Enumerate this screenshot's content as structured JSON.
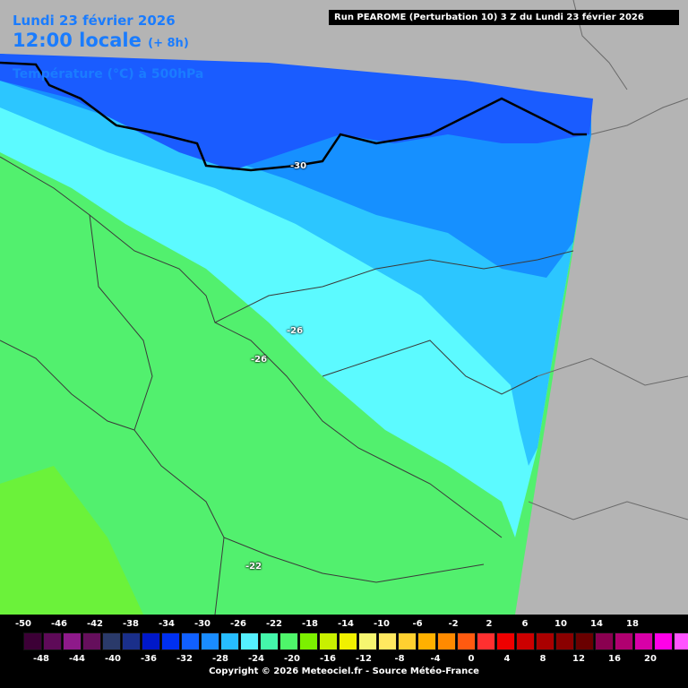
{
  "header": {
    "date": "Lundi 23 février 2026",
    "time": "12:00 locale",
    "lead": "(+ 8h)",
    "parameter": "Température (°C) à 500hPa"
  },
  "run_info": "Run PEAROME (Perturbation 10) 3 Z du Lundi 23 février 2026",
  "isotherm_labels": [
    "-30",
    "-26",
    "-26",
    "-22"
  ],
  "legend": {
    "top_labels": [
      "-50",
      "-46",
      "-42",
      "-38",
      "-34",
      "-30",
      "-26",
      "-22",
      "-18",
      "-14",
      "-10",
      "-6",
      "-2",
      "2",
      "6",
      "10",
      "14",
      "18"
    ],
    "bottom_labels": [
      "-48",
      "-44",
      "-40",
      "-36",
      "-32",
      "-28",
      "-24",
      "-20",
      "-16",
      "-12",
      "-8",
      "-4",
      "0",
      "4",
      "8",
      "12",
      "16",
      "20"
    ],
    "colors": [
      "#3c0036",
      "#5e0a58",
      "#8e1a8a",
      "#650f5c",
      "#2a3a6a",
      "#1a2f8a",
      "#0018c8",
      "#0030f0",
      "#1160ff",
      "#1a8cff",
      "#27bdff",
      "#55f0ff",
      "#44f6aa",
      "#4ef56a",
      "#7cf000",
      "#c8f000",
      "#f0f000",
      "#f6f670",
      "#ffe860",
      "#ffd030",
      "#ffb000",
      "#ff8a00",
      "#ff5a10",
      "#ff3030",
      "#ee0000",
      "#cc0000",
      "#aa0000",
      "#8a0000",
      "#6a0000",
      "#8a0050",
      "#b00070",
      "#d800a8",
      "#ff00e8",
      "#ff55ff",
      "#ff9aff"
    ],
    "copyright": "Copyright © 2026 Meteociel.fr - Source Météo-France"
  }
}
